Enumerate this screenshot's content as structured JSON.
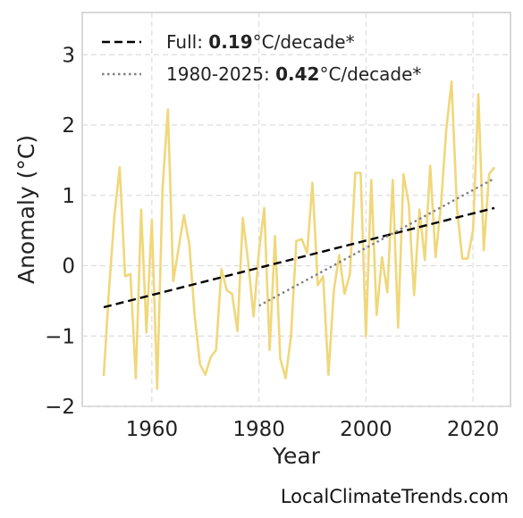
{
  "chart_data": {
    "type": "line",
    "xlabel": "Year",
    "ylabel": "Anomaly (°C)",
    "xlim": [
      1947,
      2027
    ],
    "ylim": [
      -2.0,
      3.6
    ],
    "grid": true,
    "legend_position": "top-left",
    "x_ticks": [
      {
        "value": 1960,
        "label": "1960"
      },
      {
        "value": 1980,
        "label": "1980"
      },
      {
        "value": 2000,
        "label": "2000"
      },
      {
        "value": 2020,
        "label": "2020"
      }
    ],
    "y_ticks": [
      {
        "value": -2,
        "label": "−2"
      },
      {
        "value": -1,
        "label": "−1"
      },
      {
        "value": 0,
        "label": "0"
      },
      {
        "value": 1,
        "label": "1"
      },
      {
        "value": 2,
        "label": "2"
      },
      {
        "value": 3,
        "label": "3"
      }
    ],
    "series": [
      {
        "style": "solid",
        "color": "#f0d77a",
        "x": [
          1951,
          1952,
          1953,
          1954,
          1955,
          1956,
          1957,
          1958,
          1959,
          1960,
          1961,
          1962,
          1963,
          1964,
          1965,
          1966,
          1967,
          1968,
          1969,
          1970,
          1971,
          1972,
          1973,
          1974,
          1975,
          1976,
          1977,
          1978,
          1979,
          1980,
          1981,
          1982,
          1983,
          1984,
          1985,
          1986,
          1987,
          1988,
          1989,
          1990,
          1991,
          1992,
          1993,
          1994,
          1995,
          1996,
          1997,
          1998,
          1999,
          2000,
          2001,
          2002,
          2003,
          2004,
          2005,
          2006,
          2007,
          2008,
          2009,
          2010,
          2011,
          2012,
          2013,
          2014,
          2015,
          2016,
          2017,
          2018,
          2019,
          2020,
          2021,
          2022,
          2023,
          2024
        ],
        "y": [
          -1.57,
          -0.35,
          0.7,
          1.4,
          -0.15,
          -0.12,
          -1.6,
          0.8,
          -0.95,
          0.65,
          -1.75,
          1.1,
          2.22,
          -0.22,
          0.25,
          0.72,
          0.3,
          -0.7,
          -1.4,
          -1.55,
          -1.3,
          -1.2,
          -0.05,
          -0.35,
          -0.4,
          -0.93,
          0.68,
          0.05,
          -0.72,
          0.2,
          0.82,
          -1.2,
          0.42,
          -1.32,
          -1.6,
          -1.0,
          0.35,
          0.38,
          0.18,
          1.18,
          -0.28,
          -0.15,
          -1.55,
          -0.35,
          0.15,
          -0.4,
          -0.12,
          1.32,
          1.32,
          -1.0,
          1.22,
          -0.7,
          0.12,
          -0.38,
          1.22,
          -0.88,
          1.3,
          0.88,
          -0.42,
          0.8,
          0.08,
          1.42,
          0.12,
          0.85,
          1.92,
          2.62,
          0.82,
          0.1,
          0.1,
          0.5,
          2.44,
          0.22,
          1.3,
          1.4
        ]
      },
      {
        "name": "Full: 0.19°C/decade*",
        "style": "dashed",
        "color": "#000000",
        "x": [
          1951,
          2024
        ],
        "y": [
          -0.59,
          0.82
        ]
      },
      {
        "name": "1980-2025: 0.42°C/decade*",
        "style": "dotted",
        "color": "#808080",
        "x": [
          1980,
          2024
        ],
        "y": [
          -0.57,
          1.24
        ]
      }
    ],
    "legend": [
      {
        "style": "dashed",
        "color": "#000000",
        "prefix": "Full: ",
        "value": "0.19",
        "suffix": "°C/decade*"
      },
      {
        "style": "dotted",
        "color": "#808080",
        "prefix": "1980-2025: ",
        "value": "0.42",
        "suffix": "°C/decade*"
      }
    ]
  },
  "watermark": "LocalClimateTrends.com"
}
